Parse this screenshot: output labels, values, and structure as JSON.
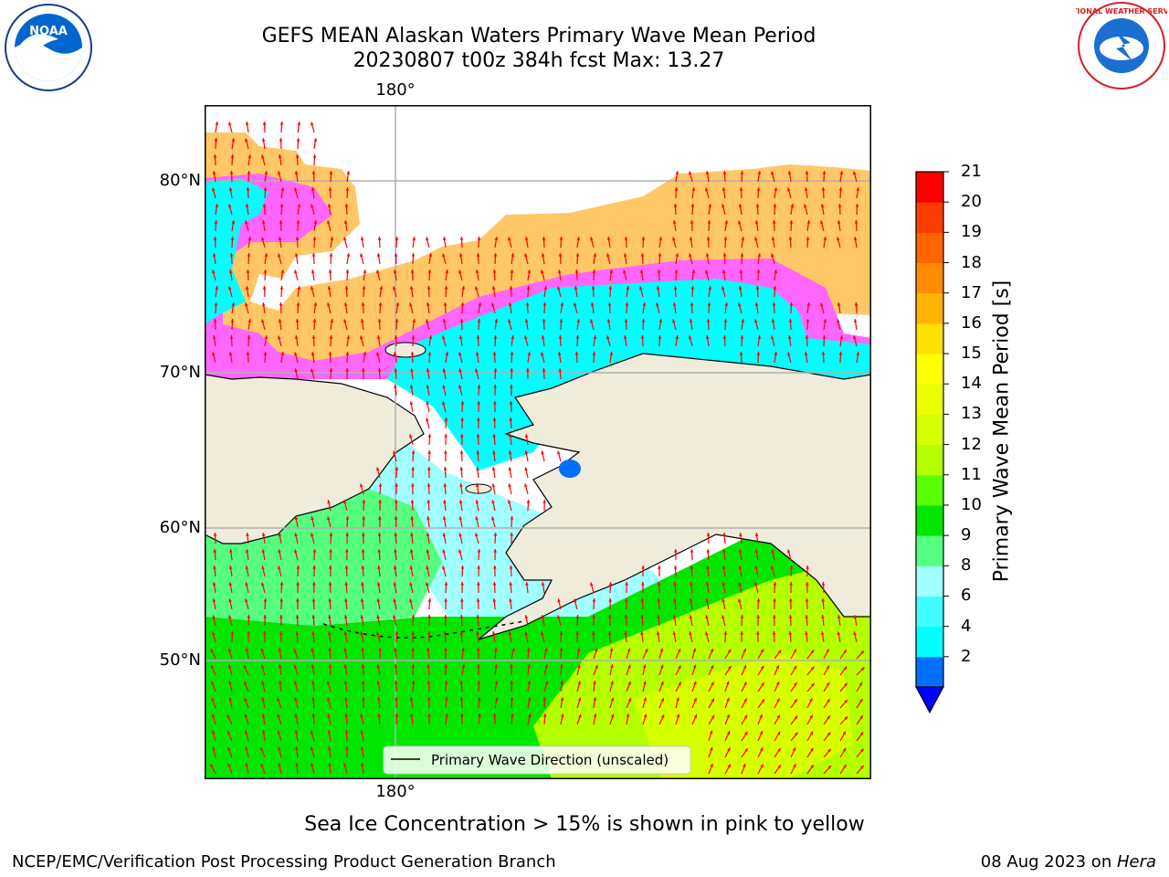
{
  "title_line1": "GEFS MEAN Alaskan Waters Primary Wave Mean Period",
  "title_line2": "20230807 t00z 384h fcst   Max: 13.27",
  "lon_label_top": "180°",
  "lon_label_bottom": "180°",
  "lat_labels": [
    "80°N",
    "70°N",
    "60°N",
    "50°N"
  ],
  "legend_label": "Primary Wave Direction (unscaled)",
  "colorbar": {
    "label": "Primary Wave Mean Period [s]",
    "ticks": [
      "21",
      "20",
      "19",
      "18",
      "17",
      "16",
      "15",
      "14",
      "13",
      "12",
      "11",
      "10",
      "9",
      "8",
      "6",
      "4",
      "2"
    ],
    "colors_bottom_to_top": [
      "#0070ff",
      "#00ffff",
      "#40ffff",
      "#a0ffff",
      "#55ff80",
      "#00e600",
      "#5aff00",
      "#b4ff00",
      "#d6ff00",
      "#ecff00",
      "#ffff00",
      "#ffe000",
      "#ffb400",
      "#ff8c00",
      "#ff6400",
      "#ff3c00",
      "#ff0000"
    ],
    "extend_color": "#0000ff"
  },
  "caption": "Sea Ice Concentration > 15% is shown in pink to yellow",
  "footer_left": "NCEP/EMC/Verification Post Processing Product Generation Branch",
  "footer_right_prefix": "08 Aug 2023 on ",
  "footer_right_host": "Hera",
  "logos": {
    "left": "NOAA",
    "right": "NATIONAL WEATHER SERVICE"
  },
  "colors": {
    "land": "#efecdc",
    "ice_pink": "#ff66ff",
    "ice_orange": "#ffcc66",
    "arrow": "#ff0000",
    "grid": "#b0b0b0"
  }
}
